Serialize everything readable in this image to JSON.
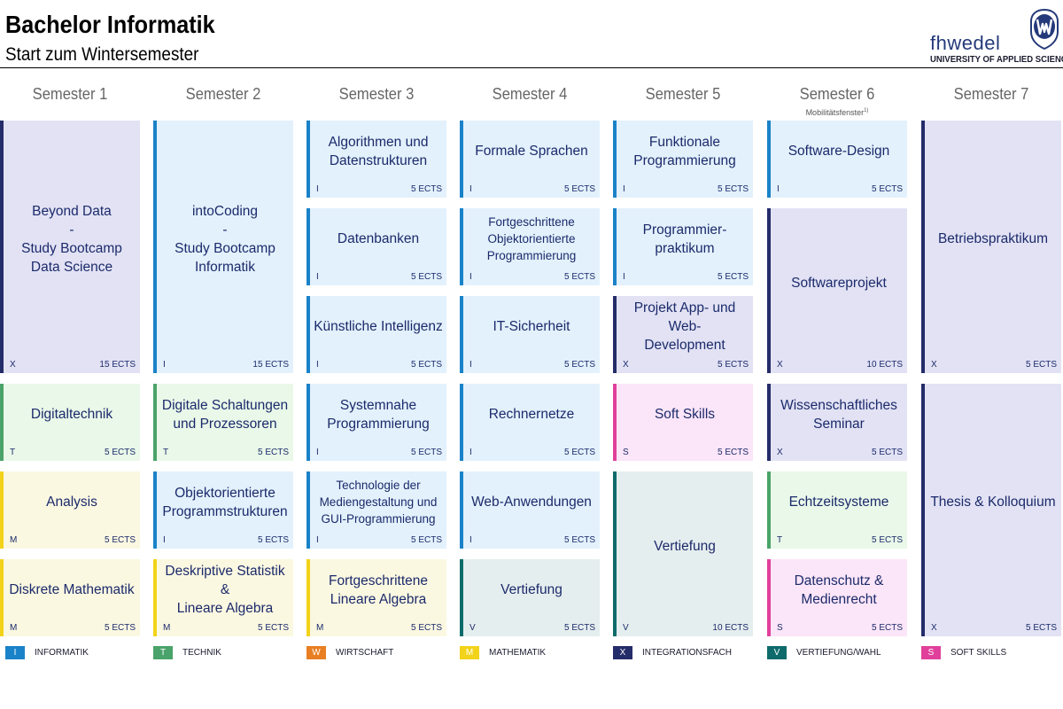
{
  "header": {
    "title": "Bachelor Informatik",
    "subtitle": "Start zum Wintersemester",
    "logo_name": "fhwedel",
    "logo_sub": "UNIVERSITY OF APPLIED SCIENCES"
  },
  "semesters": [
    {
      "label": "Semester 1"
    },
    {
      "label": "Semester 2"
    },
    {
      "label": "Semester 3"
    },
    {
      "label": "Semester 4"
    },
    {
      "label": "Semester 5"
    },
    {
      "label": "Semester 6",
      "note": "Mobilitätsfenster",
      "note_sup": "1)"
    },
    {
      "label": "Semester 7"
    }
  ],
  "modules": [
    {
      "sem": 1,
      "title": "Beyond Data\n-\nStudy Bootcamp\nData Science",
      "code": "X",
      "ects": "15 ECTS"
    },
    {
      "sem": 1,
      "title": "Digitaltechnik",
      "code": "T",
      "ects": "5 ECTS"
    },
    {
      "sem": 1,
      "title": "Analysis",
      "code": "M",
      "ects": "5 ECTS"
    },
    {
      "sem": 1,
      "title": "Diskrete Mathematik",
      "code": "M",
      "ects": "5 ECTS"
    },
    {
      "sem": 2,
      "title": "intoCoding\n-\nStudy Bootcamp\nInformatik",
      "code": "I",
      "ects": "15 ECTS"
    },
    {
      "sem": 2,
      "title": "Digitale Schaltungen\nund Prozessoren",
      "code": "T",
      "ects": "5 ECTS"
    },
    {
      "sem": 2,
      "title": "Objektorientierte\nProgrammstrukturen",
      "code": "I",
      "ects": "5 ECTS"
    },
    {
      "sem": 2,
      "title": "Deskriptive Statistik &\nLineare Algebra",
      "code": "M",
      "ects": "5 ECTS"
    },
    {
      "sem": 3,
      "title": "Algorithmen und\nDatenstrukturen",
      "code": "I",
      "ects": "5 ECTS"
    },
    {
      "sem": 3,
      "title": "Datenbanken",
      "code": "I",
      "ects": "5 ECTS"
    },
    {
      "sem": 3,
      "title": "Künstliche Intelligenz",
      "code": "I",
      "ects": "5 ECTS"
    },
    {
      "sem": 3,
      "title": "Systemnahe\nProgrammierung",
      "code": "I",
      "ects": "5 ECTS"
    },
    {
      "sem": 3,
      "title": "Technologie der\nMediengestaltung und\nGUI-Programmierung",
      "code": "I",
      "ects": "5 ECTS"
    },
    {
      "sem": 3,
      "title": "Fortgeschrittene\nLineare Algebra",
      "code": "M",
      "ects": "5 ECTS"
    },
    {
      "sem": 4,
      "title": "Formale Sprachen",
      "code": "I",
      "ects": "5 ECTS"
    },
    {
      "sem": 4,
      "title": "Fortgeschrittene\nObjektorientierte\nProgrammierung",
      "code": "I",
      "ects": "5 ECTS"
    },
    {
      "sem": 4,
      "title": "IT-Sicherheit",
      "code": "I",
      "ects": "5 ECTS"
    },
    {
      "sem": 4,
      "title": "Rechnernetze",
      "code": "I",
      "ects": "5 ECTS"
    },
    {
      "sem": 4,
      "title": "Web-Anwendungen",
      "code": "I",
      "ects": "5 ECTS"
    },
    {
      "sem": 4,
      "title": "Vertiefung",
      "code": "V",
      "ects": "5 ECTS"
    },
    {
      "sem": 5,
      "title": "Funktionale\nProgrammierung",
      "code": "I",
      "ects": "5 ECTS"
    },
    {
      "sem": 5,
      "title": "Programmier-\npraktikum",
      "code": "I",
      "ects": "5 ECTS"
    },
    {
      "sem": 5,
      "title": "Projekt App- und Web-\nDevelopment",
      "code": "X",
      "ects": "5 ECTS"
    },
    {
      "sem": 5,
      "title": "Soft Skills",
      "code": "S",
      "ects": "5 ECTS"
    },
    {
      "sem": 5,
      "title": "Vertiefung",
      "code": "V",
      "ects": "10 ECTS"
    },
    {
      "sem": 6,
      "title": "Software-Design",
      "code": "I",
      "ects": "5 ECTS"
    },
    {
      "sem": 6,
      "title": "Softwareprojekt",
      "code": "X",
      "ects": "10 ECTS"
    },
    {
      "sem": 6,
      "title": "Wissenschaftliches\nSeminar",
      "code": "X",
      "ects": "5 ECTS"
    },
    {
      "sem": 6,
      "title": "Echtzeitsysteme",
      "code": "T",
      "ects": "5 ECTS"
    },
    {
      "sem": 6,
      "title": "Datenschutz &\nMedienrecht",
      "code": "S",
      "ects": "5 ECTS"
    },
    {
      "sem": 7,
      "title": "Betriebspraktikum",
      "code": "X",
      "ects": "5 ECTS"
    },
    {
      "sem": 7,
      "title": "Thesis & Kolloquium",
      "code": "X",
      "ects": "5 ECTS"
    }
  ],
  "legend": [
    {
      "code": "I",
      "label": "INFORMATIK",
      "color": "#1a82c8"
    },
    {
      "code": "T",
      "label": "TECHNIK",
      "color": "#4aa36a"
    },
    {
      "code": "W",
      "label": "WIRTSCHAFT",
      "color": "#e87f22"
    },
    {
      "code": "M",
      "label": "MATHEMATIK",
      "color": "#f2d31a"
    },
    {
      "code": "X",
      "label": "INTEGRATIONSFACH",
      "color": "#252c6a"
    },
    {
      "code": "V",
      "label": "VERTIEFUNG/WAHL",
      "color": "#0f6b6b"
    },
    {
      "code": "S",
      "label": "SOFT SKILLS",
      "color": "#e0409b"
    }
  ]
}
